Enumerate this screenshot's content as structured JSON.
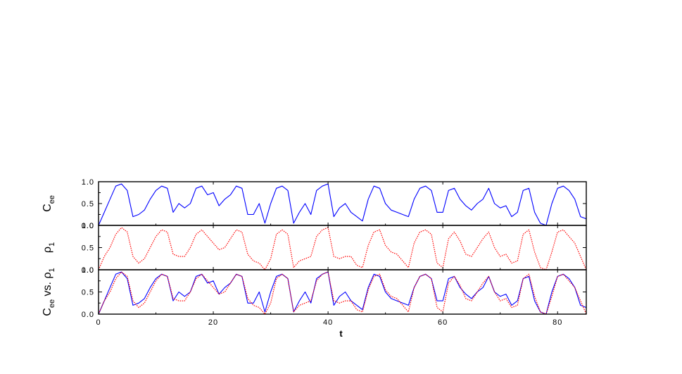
{
  "colors": {
    "series_c_ee": "#0000ff",
    "series_rho_1": "#ff0000",
    "axes": "#000000",
    "background": "#ffffff"
  },
  "chart_data": [
    {
      "type": "line",
      "panel": "top",
      "ylabel": {
        "main": "C",
        "sub": "ee"
      },
      "xlim": [
        0,
        85
      ],
      "ylim": [
        0,
        1
      ],
      "yticks": [
        {
          "value": 0.0,
          "label": "0.0"
        },
        {
          "value": 0.5,
          "label": "0.5"
        },
        {
          "value": 1.0,
          "label": "1.0"
        }
      ],
      "series": [
        {
          "key": "c_ee",
          "style": "solid",
          "color": "#0000ff",
          "x": [
            0,
            1,
            2,
            3,
            4,
            5,
            6,
            7,
            8,
            9,
            10,
            11,
            12,
            13,
            14,
            15,
            16,
            17,
            18,
            19,
            20,
            21,
            22,
            23,
            24,
            25,
            26,
            27,
            28,
            29,
            30,
            31,
            32,
            33,
            34,
            35,
            36,
            37,
            38,
            39,
            40,
            41,
            42,
            43,
            44,
            45,
            46,
            47,
            48,
            49,
            50,
            51,
            52,
            53,
            54,
            55,
            56,
            57,
            58,
            59,
            60,
            61,
            62,
            63,
            64,
            65,
            66,
            67,
            68,
            69,
            70,
            71,
            72,
            73,
            74,
            75,
            76,
            77,
            78,
            79,
            80,
            81,
            82,
            83,
            84,
            85
          ],
          "y": [
            0.0,
            0.3,
            0.6,
            0.9,
            0.95,
            0.8,
            0.2,
            0.25,
            0.35,
            0.6,
            0.8,
            0.9,
            0.85,
            0.3,
            0.5,
            0.4,
            0.5,
            0.85,
            0.9,
            0.7,
            0.75,
            0.45,
            0.6,
            0.7,
            0.9,
            0.85,
            0.25,
            0.25,
            0.5,
            0.05,
            0.5,
            0.85,
            0.9,
            0.8,
            0.05,
            0.3,
            0.5,
            0.25,
            0.8,
            0.9,
            0.95,
            0.2,
            0.4,
            0.5,
            0.3,
            0.2,
            0.1,
            0.6,
            0.9,
            0.85,
            0.5,
            0.35,
            0.3,
            0.25,
            0.2,
            0.6,
            0.85,
            0.9,
            0.8,
            0.3,
            0.3,
            0.8,
            0.85,
            0.6,
            0.45,
            0.35,
            0.5,
            0.6,
            0.85,
            0.5,
            0.4,
            0.45,
            0.2,
            0.3,
            0.8,
            0.85,
            0.3,
            0.05,
            0.0,
            0.5,
            0.85,
            0.9,
            0.8,
            0.6,
            0.2,
            0.15
          ]
        }
      ]
    },
    {
      "type": "line",
      "panel": "middle",
      "ylabel": {
        "main": "ρ",
        "sub": "1"
      },
      "xlim": [
        0,
        85
      ],
      "ylim": [
        0,
        1
      ],
      "yticks": [
        {
          "value": 0.0,
          "label": "0.0"
        },
        {
          "value": 0.5,
          "label": "0.5"
        },
        {
          "value": 1.0,
          "label": "1.0"
        }
      ],
      "series": [
        {
          "key": "rho_1",
          "style": "dotted",
          "color": "#ff0000",
          "x": [
            0,
            1,
            2,
            3,
            4,
            5,
            6,
            7,
            8,
            9,
            10,
            11,
            12,
            13,
            14,
            15,
            16,
            17,
            18,
            19,
            20,
            21,
            22,
            23,
            24,
            25,
            26,
            27,
            28,
            29,
            30,
            31,
            32,
            33,
            34,
            35,
            36,
            37,
            38,
            39,
            40,
            41,
            42,
            43,
            44,
            45,
            46,
            47,
            48,
            49,
            50,
            51,
            52,
            53,
            54,
            55,
            56,
            57,
            58,
            59,
            60,
            61,
            62,
            63,
            64,
            65,
            66,
            67,
            68,
            69,
            70,
            71,
            72,
            73,
            74,
            75,
            76,
            77,
            78,
            79,
            80,
            81,
            82,
            83,
            84,
            85
          ],
          "y": [
            0.0,
            0.3,
            0.5,
            0.8,
            0.95,
            0.85,
            0.3,
            0.15,
            0.25,
            0.5,
            0.75,
            0.9,
            0.85,
            0.35,
            0.3,
            0.3,
            0.5,
            0.8,
            0.9,
            0.75,
            0.6,
            0.45,
            0.5,
            0.7,
            0.9,
            0.85,
            0.35,
            0.2,
            0.15,
            0.0,
            0.25,
            0.8,
            0.9,
            0.8,
            0.05,
            0.2,
            0.25,
            0.3,
            0.75,
            0.9,
            0.95,
            0.3,
            0.25,
            0.3,
            0.3,
            0.1,
            0.05,
            0.55,
            0.85,
            0.9,
            0.55,
            0.4,
            0.35,
            0.2,
            0.05,
            0.6,
            0.85,
            0.9,
            0.8,
            0.15,
            0.05,
            0.7,
            0.85,
            0.65,
            0.35,
            0.3,
            0.5,
            0.7,
            0.85,
            0.5,
            0.3,
            0.35,
            0.15,
            0.2,
            0.8,
            0.9,
            0.4,
            0.05,
            0.0,
            0.4,
            0.85,
            0.9,
            0.75,
            0.6,
            0.3,
            0.0
          ]
        }
      ]
    },
    {
      "type": "line",
      "panel": "bottom",
      "ylabel": {
        "main": "C",
        "sub": "ee",
        "middle": "vs.",
        "main2": "ρ",
        "sub2": "1"
      },
      "xlabel": "t",
      "xlim": [
        0,
        85
      ],
      "ylim": [
        0,
        1
      ],
      "xticks": [
        {
          "value": 0,
          "label": "0"
        },
        {
          "value": 20,
          "label": "20"
        },
        {
          "value": 40,
          "label": "40"
        },
        {
          "value": 60,
          "label": "60"
        },
        {
          "value": 80,
          "label": "80"
        }
      ],
      "yticks": [
        {
          "value": 0.0,
          "label": "0.0"
        },
        {
          "value": 0.5,
          "label": "0.5"
        },
        {
          "value": 1.0,
          "label": "1.0"
        }
      ],
      "series": [
        {
          "key": "c_ee",
          "style": "solid",
          "color": "#0000ff",
          "x": [
            0,
            1,
            2,
            3,
            4,
            5,
            6,
            7,
            8,
            9,
            10,
            11,
            12,
            13,
            14,
            15,
            16,
            17,
            18,
            19,
            20,
            21,
            22,
            23,
            24,
            25,
            26,
            27,
            28,
            29,
            30,
            31,
            32,
            33,
            34,
            35,
            36,
            37,
            38,
            39,
            40,
            41,
            42,
            43,
            44,
            45,
            46,
            47,
            48,
            49,
            50,
            51,
            52,
            53,
            54,
            55,
            56,
            57,
            58,
            59,
            60,
            61,
            62,
            63,
            64,
            65,
            66,
            67,
            68,
            69,
            70,
            71,
            72,
            73,
            74,
            75,
            76,
            77,
            78,
            79,
            80,
            81,
            82,
            83,
            84,
            85
          ],
          "y": [
            0.0,
            0.3,
            0.6,
            0.9,
            0.95,
            0.8,
            0.2,
            0.25,
            0.35,
            0.6,
            0.8,
            0.9,
            0.85,
            0.3,
            0.5,
            0.4,
            0.5,
            0.85,
            0.9,
            0.7,
            0.75,
            0.45,
            0.6,
            0.7,
            0.9,
            0.85,
            0.25,
            0.25,
            0.5,
            0.05,
            0.5,
            0.85,
            0.9,
            0.8,
            0.05,
            0.3,
            0.5,
            0.25,
            0.8,
            0.9,
            0.95,
            0.2,
            0.4,
            0.5,
            0.3,
            0.2,
            0.1,
            0.6,
            0.9,
            0.85,
            0.5,
            0.35,
            0.3,
            0.25,
            0.2,
            0.6,
            0.85,
            0.9,
            0.8,
            0.3,
            0.3,
            0.8,
            0.85,
            0.6,
            0.45,
            0.35,
            0.5,
            0.6,
            0.85,
            0.5,
            0.4,
            0.45,
            0.2,
            0.3,
            0.8,
            0.85,
            0.3,
            0.05,
            0.0,
            0.5,
            0.85,
            0.9,
            0.8,
            0.6,
            0.2,
            0.15
          ]
        },
        {
          "key": "rho_1",
          "style": "dotted",
          "color": "#ff0000",
          "x": [
            0,
            1,
            2,
            3,
            4,
            5,
            6,
            7,
            8,
            9,
            10,
            11,
            12,
            13,
            14,
            15,
            16,
            17,
            18,
            19,
            20,
            21,
            22,
            23,
            24,
            25,
            26,
            27,
            28,
            29,
            30,
            31,
            32,
            33,
            34,
            35,
            36,
            37,
            38,
            39,
            40,
            41,
            42,
            43,
            44,
            45,
            46,
            47,
            48,
            49,
            50,
            51,
            52,
            53,
            54,
            55,
            56,
            57,
            58,
            59,
            60,
            61,
            62,
            63,
            64,
            65,
            66,
            67,
            68,
            69,
            70,
            71,
            72,
            73,
            74,
            75,
            76,
            77,
            78,
            79,
            80,
            81,
            82,
            83,
            84,
            85
          ],
          "y": [
            0.0,
            0.3,
            0.5,
            0.8,
            0.95,
            0.85,
            0.3,
            0.15,
            0.25,
            0.5,
            0.75,
            0.9,
            0.85,
            0.35,
            0.3,
            0.3,
            0.5,
            0.8,
            0.9,
            0.75,
            0.6,
            0.45,
            0.5,
            0.7,
            0.9,
            0.85,
            0.35,
            0.2,
            0.15,
            0.0,
            0.25,
            0.8,
            0.9,
            0.8,
            0.05,
            0.2,
            0.25,
            0.3,
            0.75,
            0.9,
            0.95,
            0.3,
            0.25,
            0.3,
            0.3,
            0.1,
            0.05,
            0.55,
            0.85,
            0.9,
            0.55,
            0.4,
            0.35,
            0.2,
            0.05,
            0.6,
            0.85,
            0.9,
            0.8,
            0.15,
            0.05,
            0.7,
            0.85,
            0.65,
            0.35,
            0.3,
            0.5,
            0.7,
            0.85,
            0.5,
            0.3,
            0.35,
            0.15,
            0.2,
            0.8,
            0.9,
            0.4,
            0.05,
            0.0,
            0.4,
            0.85,
            0.9,
            0.75,
            0.6,
            0.3,
            0.0
          ]
        }
      ]
    }
  ]
}
